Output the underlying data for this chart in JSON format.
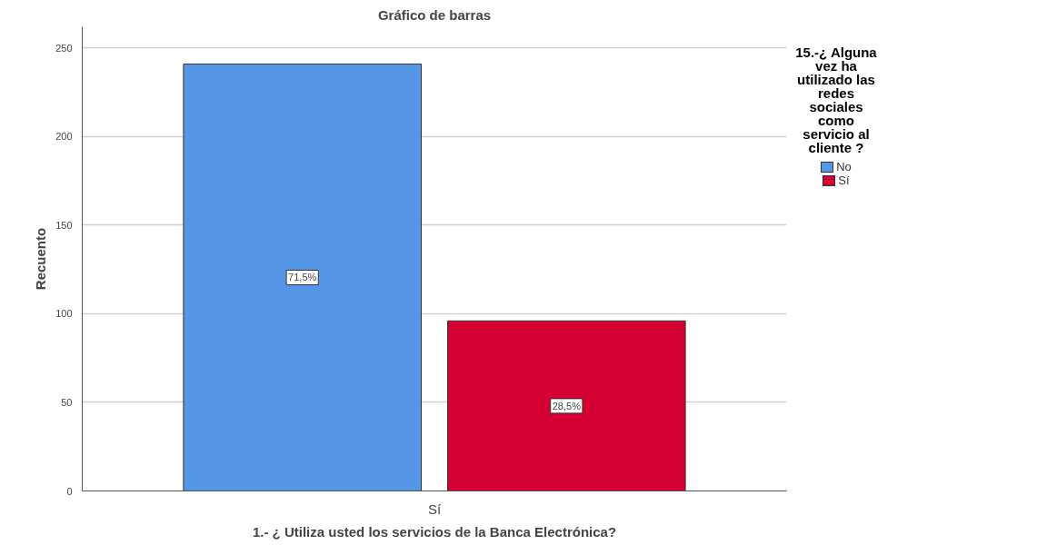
{
  "chart_data": {
    "type": "bar",
    "title": "Gráfico de barras",
    "xlabel": "1.- ¿ Utiliza usted los servicios de la Banca Electrónica?",
    "ylabel": "Recuento",
    "legend_title": "15.-¿ Alguna vez ha utilizado las redes sociales como servicio al cliente ?",
    "categories": [
      "Sí"
    ],
    "series": [
      {
        "name": "No",
        "color": "#5596e6",
        "values": [
          241
        ]
      },
      {
        "name": "Sí",
        "color": "#d50032",
        "values": [
          96
        ]
      }
    ],
    "annotations": [
      "71,5%",
      "28,5%"
    ],
    "ylim": [
      0,
      262
    ],
    "yticks": [
      0,
      50,
      100,
      150,
      200,
      250
    ],
    "grid": "y",
    "legend": "right"
  }
}
